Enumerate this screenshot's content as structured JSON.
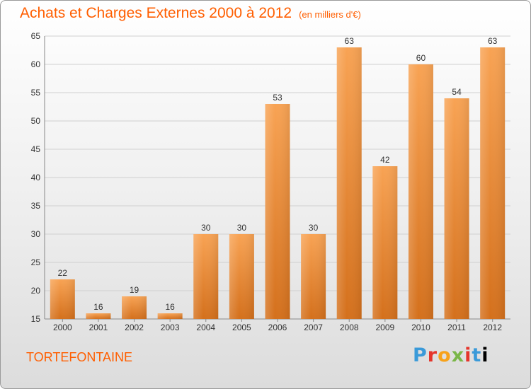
{
  "header": {
    "title": "Achats et Charges Externes 2000 à 2012",
    "unit": "(en milliers d'€)"
  },
  "footer": {
    "commune": "TORTEFONTAINE",
    "logo_letters": [
      "P",
      "r",
      "o",
      "x",
      "i",
      "t",
      "i"
    ]
  },
  "colors": {
    "accent": "#ff5e00",
    "bar_top": "#f8a354",
    "bar_bottom": "#d4701c"
  },
  "chart_data": {
    "type": "bar",
    "title": "Achats et Charges Externes 2000 à 2012",
    "subtitle": "(en milliers d'€)",
    "categories": [
      "2000",
      "2001",
      "2002",
      "2003",
      "2004",
      "2005",
      "2006",
      "2007",
      "2008",
      "2009",
      "2010",
      "2011",
      "2012"
    ],
    "values": [
      22,
      16,
      19,
      16,
      30,
      30,
      53,
      30,
      63,
      42,
      60,
      54,
      63
    ],
    "ylim": [
      15,
      65
    ],
    "yticks": [
      15,
      20,
      25,
      30,
      35,
      40,
      45,
      50,
      55,
      60,
      65
    ],
    "grid": true,
    "data_labels": true
  }
}
